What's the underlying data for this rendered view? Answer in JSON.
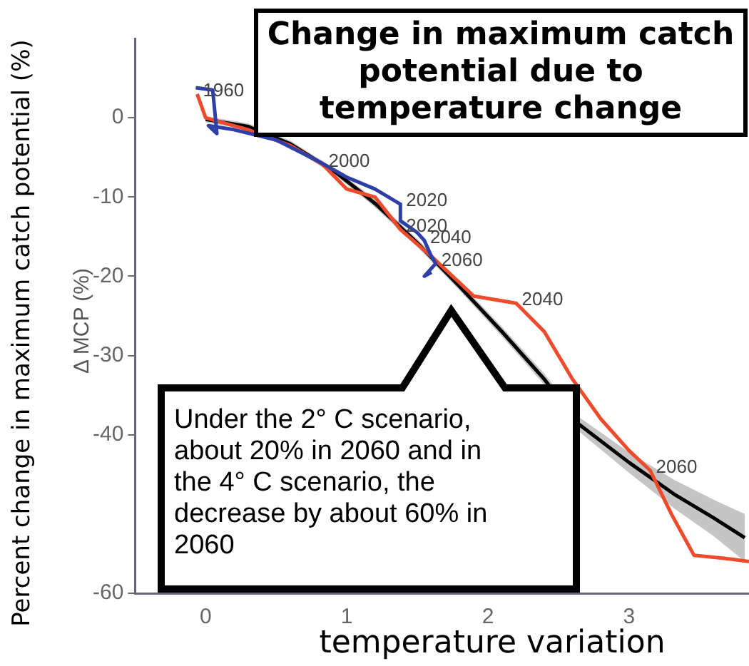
{
  "chart_data": {
    "type": "line",
    "title": "Change in maximum catch potential due to temperature change",
    "xlabel": "temperature variation",
    "ylabel": "Percent change in maximum catch potential (%)",
    "xlim": [
      -0.5,
      3.85
    ],
    "xticks": [
      0,
      1,
      2,
      3
    ],
    "ylim": [
      -60,
      10
    ],
    "yticks": [
      0,
      -10,
      -20,
      -30,
      -40,
      -60
    ],
    "grid": false,
    "legend": false,
    "marker": "none",
    "line_style": "solid",
    "series": [
      {
        "color": "#2f3fa8",
        "x": [
          -0.07,
          0.05,
          0.08,
          0.02,
          0.2,
          0.5,
          0.8,
          1.0,
          1.2,
          1.38,
          1.38,
          1.5,
          1.55,
          1.6,
          1.63,
          1.55,
          1.6
        ],
        "values": [
          3.8,
          3.5,
          -2,
          -1,
          -1.5,
          -2.8,
          -5.5,
          -7.5,
          -9,
          -10.9,
          -13,
          -14.5,
          -15.5,
          -17.5,
          -18.4,
          -20,
          -19.5
        ]
      },
      {
        "color": "#ee4a2c",
        "x": [
          -0.06,
          0.0,
          0.3,
          0.6,
          0.83,
          1.0,
          1.2,
          1.38,
          1.6,
          1.9,
          2.2,
          2.4,
          2.6,
          2.8,
          3.0,
          3.15,
          3.3,
          3.46,
          3.73,
          3.85
        ],
        "values": [
          3,
          0,
          -1.5,
          -3.5,
          -5.9,
          -9,
          -10,
          -14.1,
          -17.5,
          -22.5,
          -23.4,
          -27,
          -33,
          -38,
          -42,
          -44.5,
          -50,
          -55.2,
          -55.7,
          -56
        ]
      },
      {
        "color": "#000000",
        "x": [
          0,
          0.3,
          0.6,
          0.93,
          1.2,
          1.5,
          1.8,
          2.1,
          2.4,
          2.64,
          3.0,
          3.32,
          3.6,
          3.82
        ],
        "values": [
          -0.2,
          -1.1,
          -3.3,
          -7.0,
          -10.8,
          -15.8,
          -21.3,
          -27,
          -33,
          -38.6,
          -43.5,
          -47.5,
          -50.5,
          -53
        ],
        "lower": [
          -0.6,
          -1.5,
          -3.7,
          -7.4,
          -11.3,
          -16.3,
          -21.8,
          -27.6,
          -33.7,
          -39.5,
          -44.8,
          -49.3,
          -52.8,
          -56
        ],
        "upper": [
          0.2,
          -0.7,
          -2.9,
          -6.6,
          -10.3,
          -15.3,
          -20.8,
          -26.4,
          -32.3,
          -37.7,
          -42.2,
          -45.7,
          -48.2,
          -50
        ]
      }
    ],
    "annotations": [
      "Δ MCP (%)",
      "Under the 2° C scenario, about 20% in 2060 and in the 4° C scenario, the decrease by about 60% in 2060",
      {
        "text": "1960",
        "x": -0.06,
        "y": 3
      },
      {
        "text": "2000",
        "x": 0.83,
        "y": -5.9
      },
      {
        "text": "2020",
        "x": 1.38,
        "y": -10.9
      },
      {
        "text": "2040",
        "x": 1.55,
        "y": -15.5
      },
      {
        "text": "2060",
        "x": 1.63,
        "y": -18.4
      },
      {
        "text": "2020",
        "x": 1.38,
        "y": -14.1
      },
      {
        "text": "2040",
        "x": 2.2,
        "y": -23.4
      },
      {
        "text": "2060",
        "x": 3.15,
        "y": -44.5
      }
    ]
  }
}
